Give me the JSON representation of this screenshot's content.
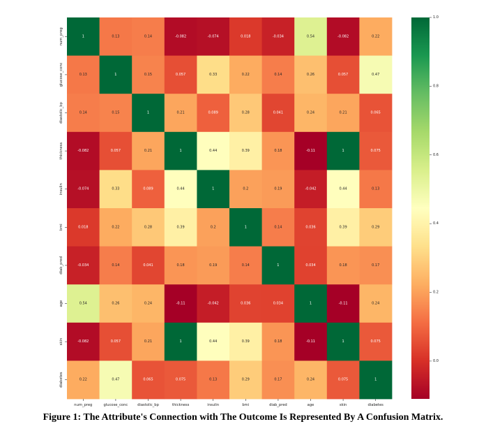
{
  "chart_data": {
    "type": "heatmap",
    "colormap": "RdYlGn",
    "labels": [
      "num_preg",
      "glucose_conc",
      "diastolic_bp",
      "thickness",
      "insulin",
      "bmi",
      "diab_pred",
      "age",
      "skin",
      "diabetes"
    ],
    "values": [
      [
        1,
        0.13,
        0.14,
        -0.082,
        -0.074,
        0.018,
        -0.034,
        0.54,
        -0.082,
        0.22
      ],
      [
        0.13,
        1,
        0.15,
        0.057,
        0.33,
        0.22,
        0.14,
        0.26,
        0.057,
        0.47
      ],
      [
        0.14,
        0.15,
        1,
        0.21,
        0.089,
        0.28,
        0.041,
        0.24,
        0.21,
        0.065
      ],
      [
        -0.082,
        0.057,
        0.21,
        1,
        0.44,
        0.39,
        0.18,
        -0.11,
        1,
        0.075
      ],
      [
        -0.074,
        0.33,
        0.089,
        0.44,
        1,
        0.2,
        0.19,
        -0.042,
        0.44,
        0.13
      ],
      [
        0.018,
        0.22,
        0.28,
        0.39,
        0.2,
        1,
        0.14,
        0.036,
        0.39,
        0.29
      ],
      [
        -0.034,
        0.14,
        0.041,
        0.18,
        0.19,
        0.14,
        1,
        0.034,
        0.18,
        0.17
      ],
      [
        0.54,
        0.26,
        0.24,
        -0.11,
        -0.042,
        0.036,
        0.034,
        1,
        -0.11,
        0.24
      ],
      [
        -0.082,
        0.057,
        0.21,
        1,
        0.44,
        0.39,
        0.18,
        -0.11,
        1,
        0.075
      ],
      [
        0.22,
        0.47,
        0.065,
        0.075,
        0.13,
        0.29,
        0.17,
        0.24,
        0.075,
        1
      ]
    ],
    "display_labels": [
      [
        "1",
        "0.13",
        "0.14",
        "-0.082",
        "-0.074",
        "0.018",
        "-0.034",
        "0.54",
        "-0.082",
        "0.22"
      ],
      [
        "0.13",
        "1",
        "0.15",
        "0.057",
        "0.33",
        "0.22",
        "0.14",
        "0.26",
        "0.057",
        "0.47"
      ],
      [
        "0.14",
        "0.15",
        "1",
        "0.21",
        "0.089",
        "0.28",
        "0.041",
        "0.24",
        "0.21",
        "0.065"
      ],
      [
        "-0.082",
        "0.057",
        "0.21",
        "1",
        "0.44",
        "0.39",
        "0.18",
        "-0.11",
        "1",
        "0.075"
      ],
      [
        "-0.074",
        "0.33",
        "0.089",
        "0.44",
        "1",
        "0.2",
        "0.19",
        "-0.042",
        "0.44",
        "0.13"
      ],
      [
        "0.018",
        "0.22",
        "0.28",
        "0.39",
        "0.2",
        "1",
        "0.14",
        "0.036",
        "0.39",
        "0.29"
      ],
      [
        "-0.034",
        "0.14",
        "0.041",
        "0.18",
        "0.19",
        "0.14",
        "1",
        "0.034",
        "0.18",
        "0.17"
      ],
      [
        "0.54",
        "0.26",
        "0.24",
        "-0.11",
        "-0.042",
        "0.036",
        "0.034",
        "1",
        "-0.11",
        "0.24"
      ],
      [
        "-0.082",
        "0.057",
        "0.21",
        "1",
        "0.44",
        "0.39",
        "0.18",
        "-0.11",
        "1",
        "0.075"
      ],
      [
        "0.22",
        "0.47",
        "0.065",
        "0.075",
        "0.13",
        "0.29",
        "0.17",
        "0.24",
        "0.075",
        "1"
      ]
    ],
    "vmin": -0.11,
    "vmax": 1.0,
    "colorbar_ticks": [
      0.0,
      0.2,
      0.4,
      0.6,
      0.8,
      1.0
    ],
    "colorbar_tick_labels": [
      "0.0",
      "0.2",
      "0.4",
      "0.6",
      "0.8",
      "1.0"
    ]
  },
  "caption": "Figure 1: The Attribute's Connection with The Outcome Is Represented By A Confusion Matrix."
}
